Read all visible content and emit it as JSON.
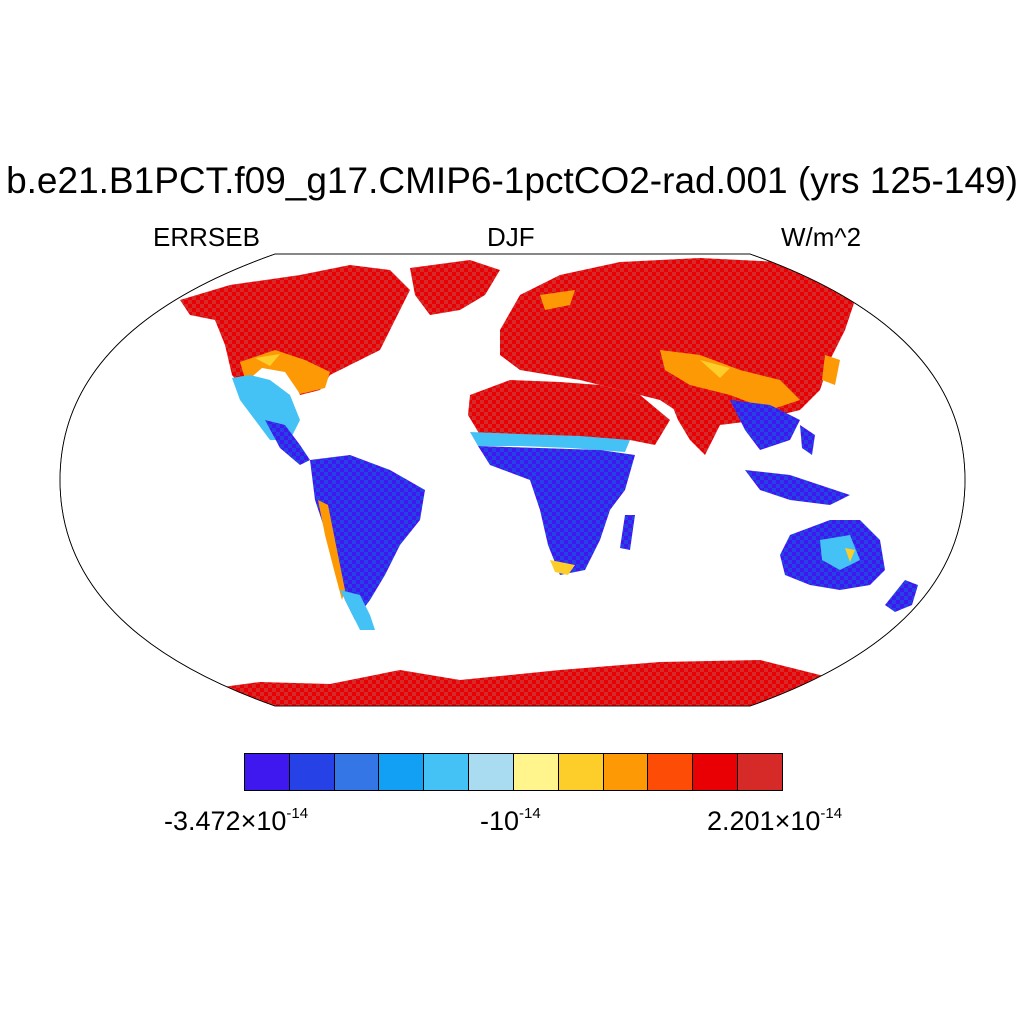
{
  "title": "b.e21.B1PCT.f09_g17.CMIP6-1pctCO2-rad.001 (yrs 125-149)",
  "left_label": "ERRSEB",
  "center_label": "DJF",
  "right_label": "W/m^2",
  "colorbar": {
    "colors": [
      "#3f18f0",
      "#2642e6",
      "#3476e6",
      "#12a0f5",
      "#45c2f5",
      "#a9dcf0",
      "#fff58c",
      "#fdcd2a",
      "#fd9905",
      "#fd4c05",
      "#e80005",
      "#d62a28"
    ],
    "min_mant": "-3.472",
    "min_exp": "-14",
    "mid_mant": "-10",
    "mid_exp": "-14",
    "max_mant": "2.201",
    "max_exp": "-14",
    "times": "×10"
  },
  "map_data": {
    "projection": "Robinson",
    "land_colors": {
      "high": "#e80005",
      "high_alt": "#d62a28",
      "transition": "#fd9905",
      "transition_alt": "#fdcd2a",
      "low": "#3f18f0",
      "low_alt": "#2642e6",
      "mid_blue": "#45c2f5"
    }
  }
}
